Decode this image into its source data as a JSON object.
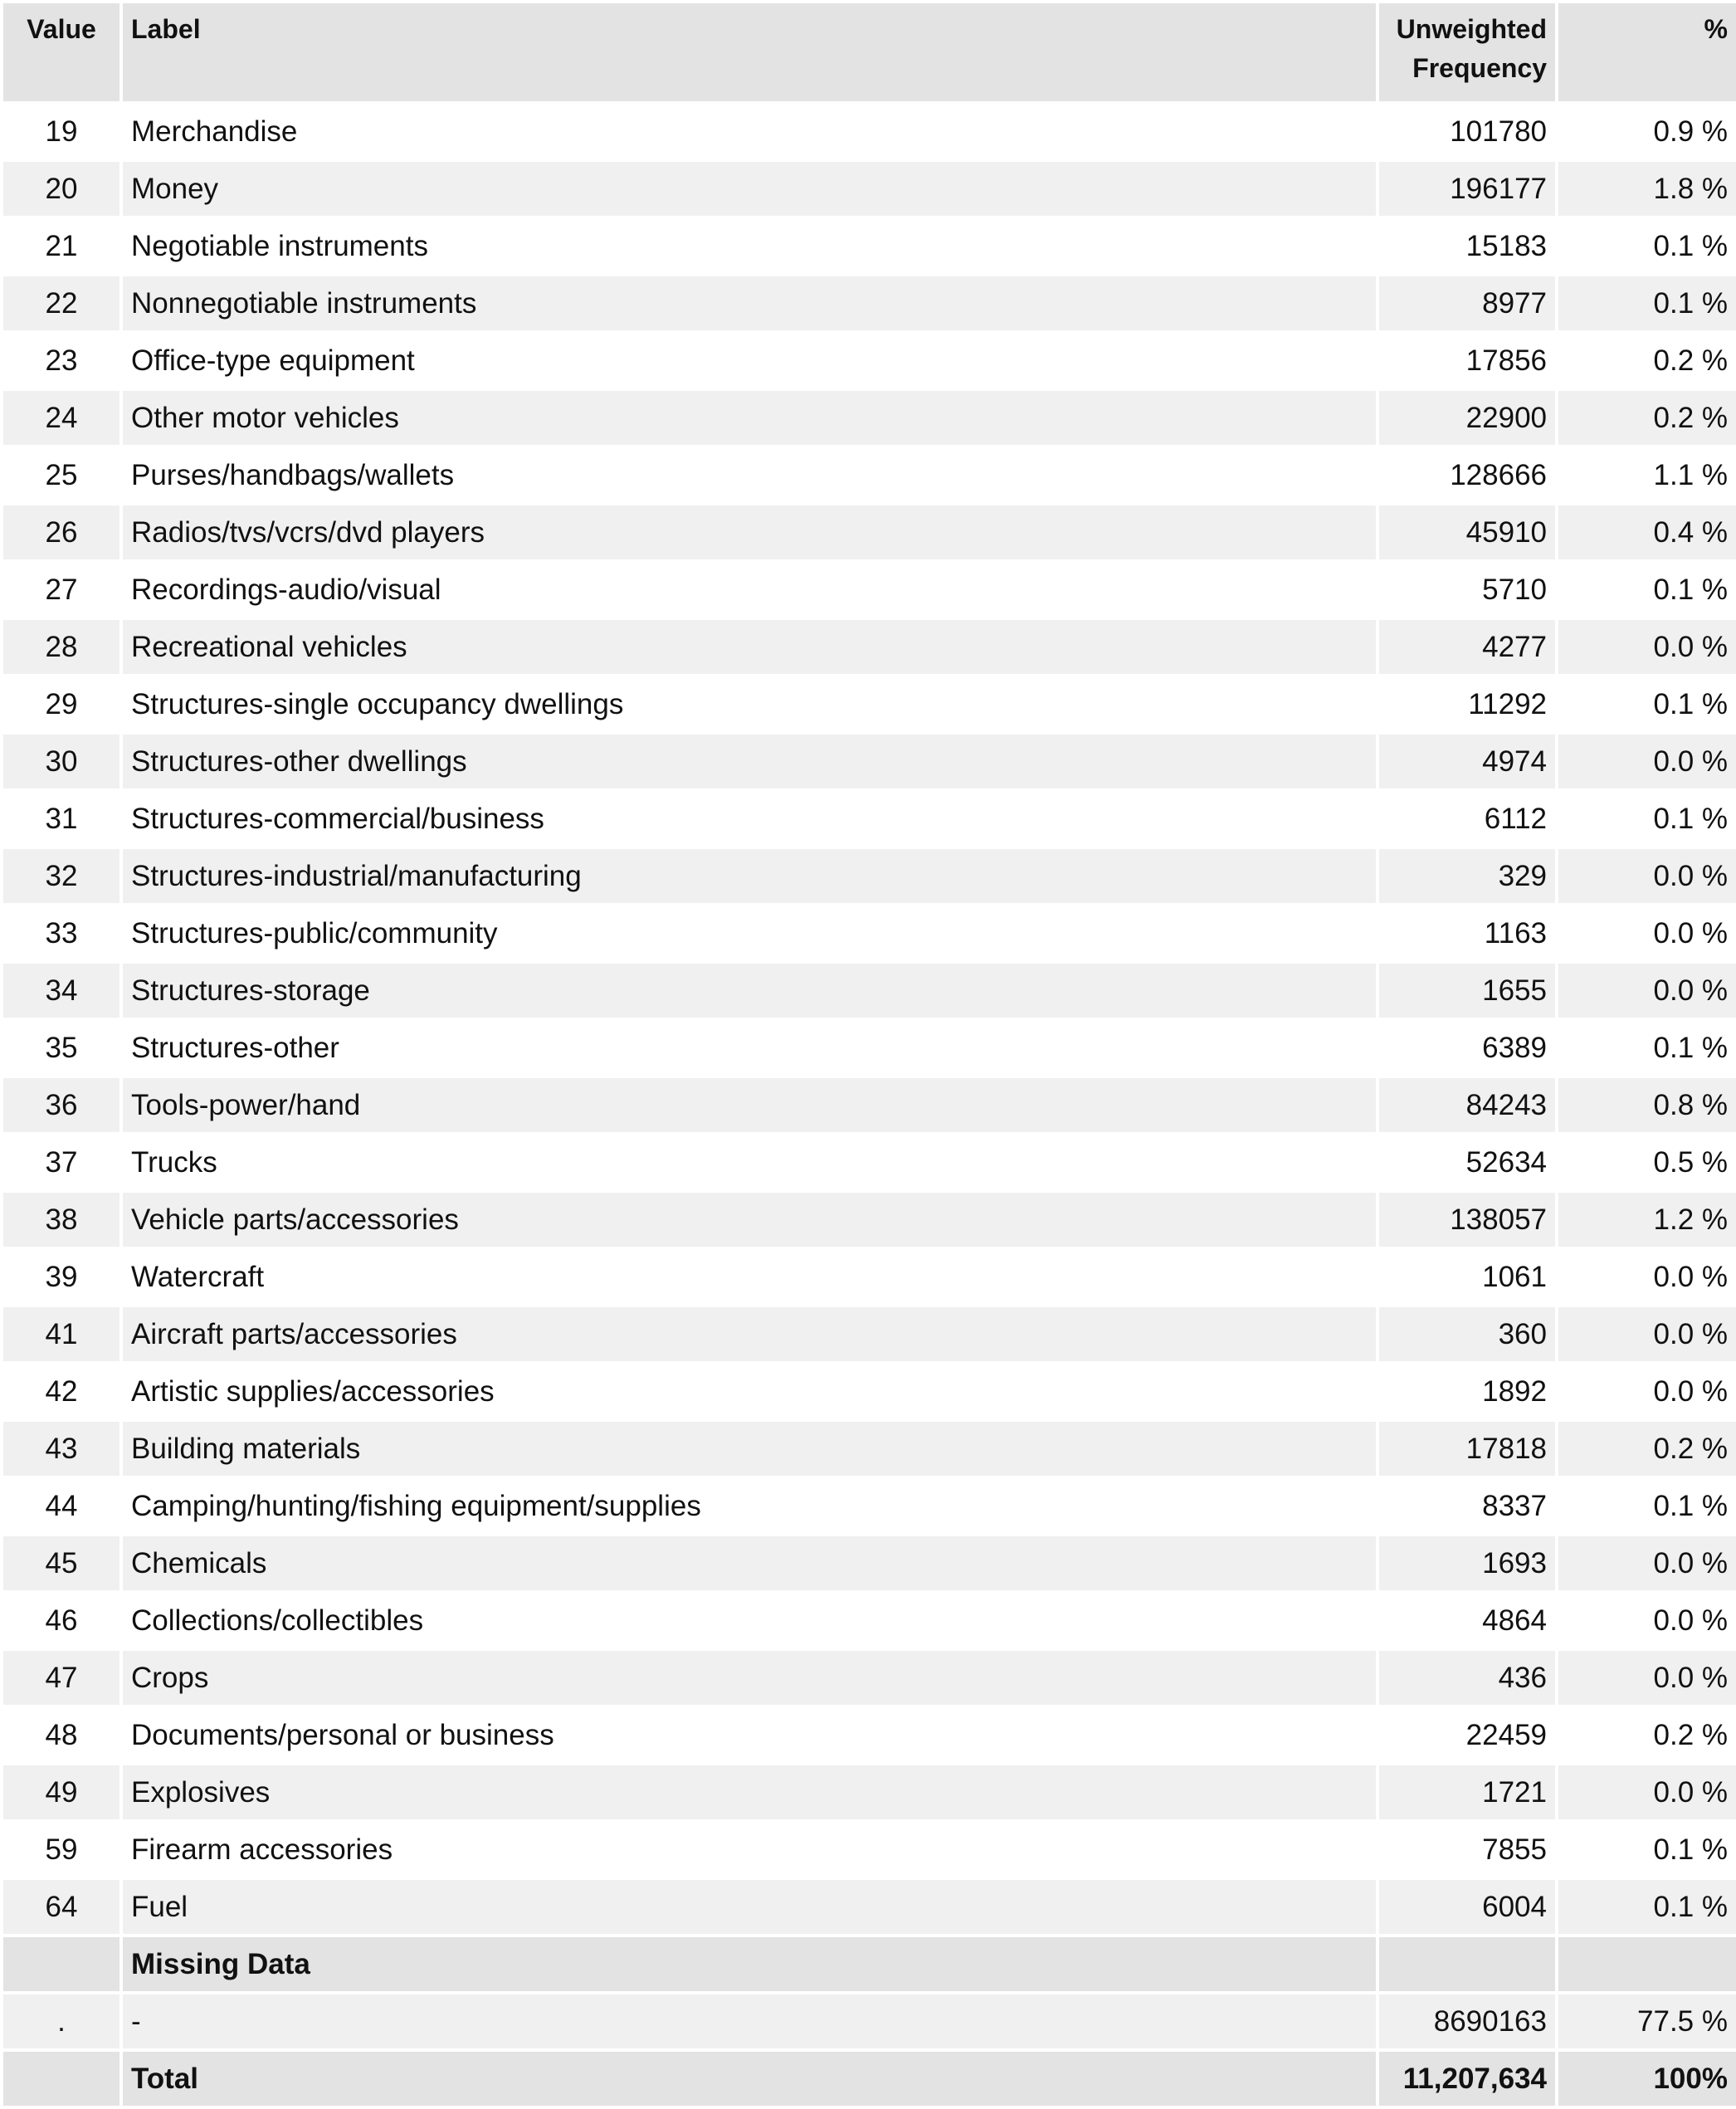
{
  "headers": {
    "value": "Value",
    "label": "Label",
    "frequency": "Unweighted Frequency",
    "percent": "%"
  },
  "rows": [
    {
      "value": "19",
      "label": "Merchandise",
      "frequency": "101780",
      "percent": "0.9 %"
    },
    {
      "value": "20",
      "label": "Money",
      "frequency": "196177",
      "percent": "1.8 %"
    },
    {
      "value": "21",
      "label": "Negotiable instruments",
      "frequency": "15183",
      "percent": "0.1 %"
    },
    {
      "value": "22",
      "label": "Nonnegotiable instruments",
      "frequency": "8977",
      "percent": "0.1 %"
    },
    {
      "value": "23",
      "label": "Office-type equipment",
      "frequency": "17856",
      "percent": "0.2 %"
    },
    {
      "value": "24",
      "label": "Other motor vehicles",
      "frequency": "22900",
      "percent": "0.2 %"
    },
    {
      "value": "25",
      "label": "Purses/handbags/wallets",
      "frequency": "128666",
      "percent": "1.1 %"
    },
    {
      "value": "26",
      "label": "Radios/tvs/vcrs/dvd players",
      "frequency": "45910",
      "percent": "0.4 %"
    },
    {
      "value": "27",
      "label": "Recordings-audio/visual",
      "frequency": "5710",
      "percent": "0.1 %"
    },
    {
      "value": "28",
      "label": "Recreational vehicles",
      "frequency": "4277",
      "percent": "0.0 %"
    },
    {
      "value": "29",
      "label": "Structures-single occupancy dwellings",
      "frequency": "11292",
      "percent": "0.1 %"
    },
    {
      "value": "30",
      "label": "Structures-other dwellings",
      "frequency": "4974",
      "percent": "0.0 %"
    },
    {
      "value": "31",
      "label": "Structures-commercial/business",
      "frequency": "6112",
      "percent": "0.1 %"
    },
    {
      "value": "32",
      "label": "Structures-industrial/manufacturing",
      "frequency": "329",
      "percent": "0.0 %"
    },
    {
      "value": "33",
      "label": "Structures-public/community",
      "frequency": "1163",
      "percent": "0.0 %"
    },
    {
      "value": "34",
      "label": "Structures-storage",
      "frequency": "1655",
      "percent": "0.0 %"
    },
    {
      "value": "35",
      "label": "Structures-other",
      "frequency": "6389",
      "percent": "0.1 %"
    },
    {
      "value": "36",
      "label": "Tools-power/hand",
      "frequency": "84243",
      "percent": "0.8 %"
    },
    {
      "value": "37",
      "label": "Trucks",
      "frequency": "52634",
      "percent": "0.5 %"
    },
    {
      "value": "38",
      "label": "Vehicle parts/accessories",
      "frequency": "138057",
      "percent": "1.2 %"
    },
    {
      "value": "39",
      "label": "Watercraft",
      "frequency": "1061",
      "percent": "0.0 %"
    },
    {
      "value": "41",
      "label": "Aircraft parts/accessories",
      "frequency": "360",
      "percent": "0.0 %"
    },
    {
      "value": "42",
      "label": "Artistic supplies/accessories",
      "frequency": "1892",
      "percent": "0.0 %"
    },
    {
      "value": "43",
      "label": "Building materials",
      "frequency": "17818",
      "percent": "0.2 %"
    },
    {
      "value": "44",
      "label": "Camping/hunting/fishing equipment/supplies",
      "frequency": "8337",
      "percent": "0.1 %"
    },
    {
      "value": "45",
      "label": "Chemicals",
      "frequency": "1693",
      "percent": "0.0 %"
    },
    {
      "value": "46",
      "label": "Collections/collectibles",
      "frequency": "4864",
      "percent": "0.0 %"
    },
    {
      "value": "47",
      "label": "Crops",
      "frequency": "436",
      "percent": "0.0 %"
    },
    {
      "value": "48",
      "label": "Documents/personal or business",
      "frequency": "22459",
      "percent": "0.2 %"
    },
    {
      "value": "49",
      "label": "Explosives",
      "frequency": "1721",
      "percent": "0.0 %"
    },
    {
      "value": "59",
      "label": "Firearm accessories",
      "frequency": "7855",
      "percent": "0.1 %"
    },
    {
      "value": "64",
      "label": "Fuel",
      "frequency": "6004",
      "percent": "0.1 %"
    }
  ],
  "missing": {
    "header": "Missing Data",
    "row": {
      "value": ".",
      "label": "-",
      "frequency": "8690163",
      "percent": "77.5 %"
    }
  },
  "total": {
    "label": "Total",
    "frequency": "11,207,634",
    "percent": "100%"
  }
}
